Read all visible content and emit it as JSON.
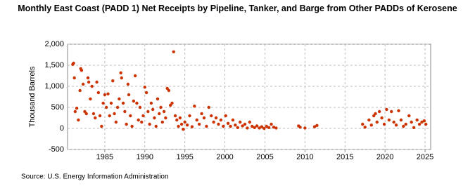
{
  "chart_data": {
    "type": "scatter",
    "title": "Monthly East Coast (PADD 1) Net Receipts by Pipeline, Tanker, and Barge from Other PADDs of Kerosene",
    "y_label": "Thousand Barrels",
    "source": "Source: U.S. Energy Information Administration",
    "color": "#cc3300",
    "grid": true,
    "xlim": [
      1980.35,
      2025.7
    ],
    "xticks": [
      1985,
      1990,
      1995,
      2000,
      2005,
      2010,
      2015,
      2020,
      2025
    ],
    "ylim": [
      -500,
      2000
    ],
    "yticks": [
      -500,
      0,
      500,
      {
        "value": 1000,
        "label": "1,000"
      },
      {
        "value": 1500,
        "label": "1,500"
      },
      {
        "value": 2000,
        "label": "2,000"
      }
    ],
    "x": [
      1981.0,
      1981.1,
      1981.2,
      1981.3,
      1981.5,
      1981.7,
      1981.9,
      1982.0,
      1982.1,
      1982.3,
      1982.5,
      1982.7,
      1982.9,
      1983.0,
      1983.2,
      1983.4,
      1983.6,
      1983.8,
      1984.0,
      1984.2,
      1984.4,
      1984.6,
      1984.8,
      1985.0,
      1985.2,
      1985.4,
      1985.6,
      1985.8,
      1986.0,
      1986.2,
      1986.4,
      1986.6,
      1986.8,
      1987.0,
      1987.1,
      1987.3,
      1987.5,
      1987.7,
      1987.9,
      1988.0,
      1988.2,
      1988.4,
      1988.6,
      1988.8,
      1989.0,
      1989.2,
      1989.4,
      1989.6,
      1989.8,
      1990.0,
      1990.2,
      1990.4,
      1990.6,
      1990.8,
      1991.0,
      1991.2,
      1991.4,
      1991.6,
      1991.8,
      1992.0,
      1992.2,
      1992.4,
      1992.6,
      1992.8,
      1993.0,
      1993.2,
      1993.4,
      1993.6,
      1993.8,
      1994.0,
      1994.2,
      1994.4,
      1994.6,
      1994.8,
      1995.0,
      1995.3,
      1995.6,
      1995.9,
      1996.2,
      1996.5,
      1996.8,
      1997.1,
      1997.4,
      1997.7,
      1998.0,
      1998.3,
      1998.6,
      1998.9,
      1999.2,
      1999.5,
      1999.8,
      2000.1,
      2000.4,
      2000.7,
      2001.0,
      2001.3,
      2001.6,
      2001.9,
      2002.2,
      2002.5,
      2002.8,
      2003.1,
      2003.4,
      2003.7,
      2004.0,
      2004.3,
      2004.6,
      2004.9,
      2005.2,
      2005.5,
      2005.8,
      2006.1,
      2006.4,
      2009.2,
      2009.4,
      2010.0,
      2011.2,
      2011.5,
      2017.2,
      2017.5,
      2018.0,
      2018.3,
      2018.6,
      2018.8,
      2019.0,
      2019.3,
      2019.6,
      2019.9,
      2020.2,
      2020.5,
      2020.8,
      2021.1,
      2021.4,
      2021.7,
      2022.0,
      2022.3,
      2022.6,
      2023.0,
      2023.3,
      2023.6,
      2024.0,
      2024.3,
      2024.6,
      2024.9,
      2025.1
    ],
    "values": [
      1520,
      1550,
      1200,
      400,
      480,
      200,
      900,
      1420,
      1380,
      1050,
      400,
      350,
      1200,
      1100,
      700,
      1000,
      350,
      250,
      1100,
      850,
      300,
      50,
      600,
      800,
      500,
      820,
      300,
      600,
      1130,
      350,
      150,
      500,
      700,
      1320,
      1200,
      600,
      400,
      100,
      1050,
      800,
      300,
      50,
      650,
      1250,
      600,
      200,
      500,
      150,
      300,
      980,
      850,
      400,
      100,
      600,
      450,
      250,
      50,
      700,
      350,
      500,
      150,
      400,
      250,
      950,
      900,
      550,
      600,
      1820,
      300,
      200,
      50,
      250,
      100,
      -20,
      150,
      80,
      300,
      40,
      530,
      200,
      100,
      350,
      250,
      50,
      500,
      300,
      150,
      250,
      100,
      200,
      50,
      300,
      120,
      50,
      200,
      80,
      20,
      150,
      60,
      100,
      10,
      150,
      50,
      20,
      60,
      10,
      40,
      0,
      50,
      20,
      100,
      30,
      10,
      60,
      30,
      10,
      40,
      70,
      100,
      30,
      200,
      80,
      300,
      350,
      150,
      400,
      250,
      100,
      450,
      200,
      400,
      150,
      80,
      420,
      200,
      50,
      100,
      300,
      150,
      20,
      200,
      100,
      150,
      180,
      100
    ]
  }
}
